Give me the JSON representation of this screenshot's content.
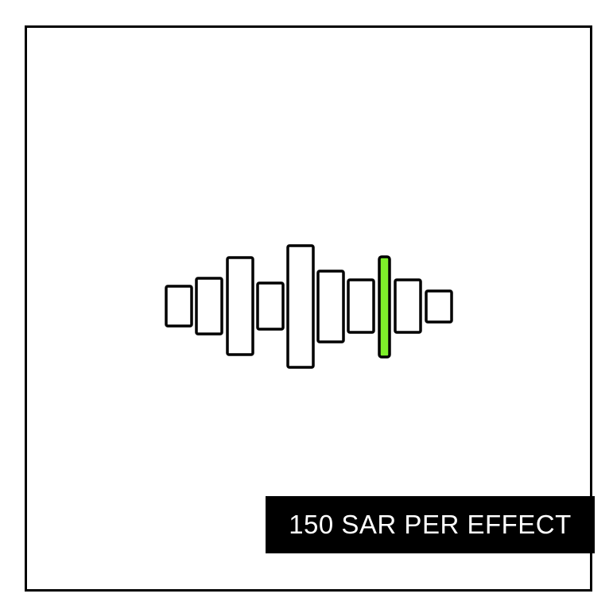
{
  "banner": {
    "text": "150 SAR PER EFFECT"
  },
  "waveform": {
    "icon": "sound-wave-icon",
    "bar_count": 10,
    "highlighted_bar": 8,
    "colors": {
      "stroke": "#000000",
      "fill": "#ffffff",
      "highlight": "#7ef02a"
    }
  }
}
